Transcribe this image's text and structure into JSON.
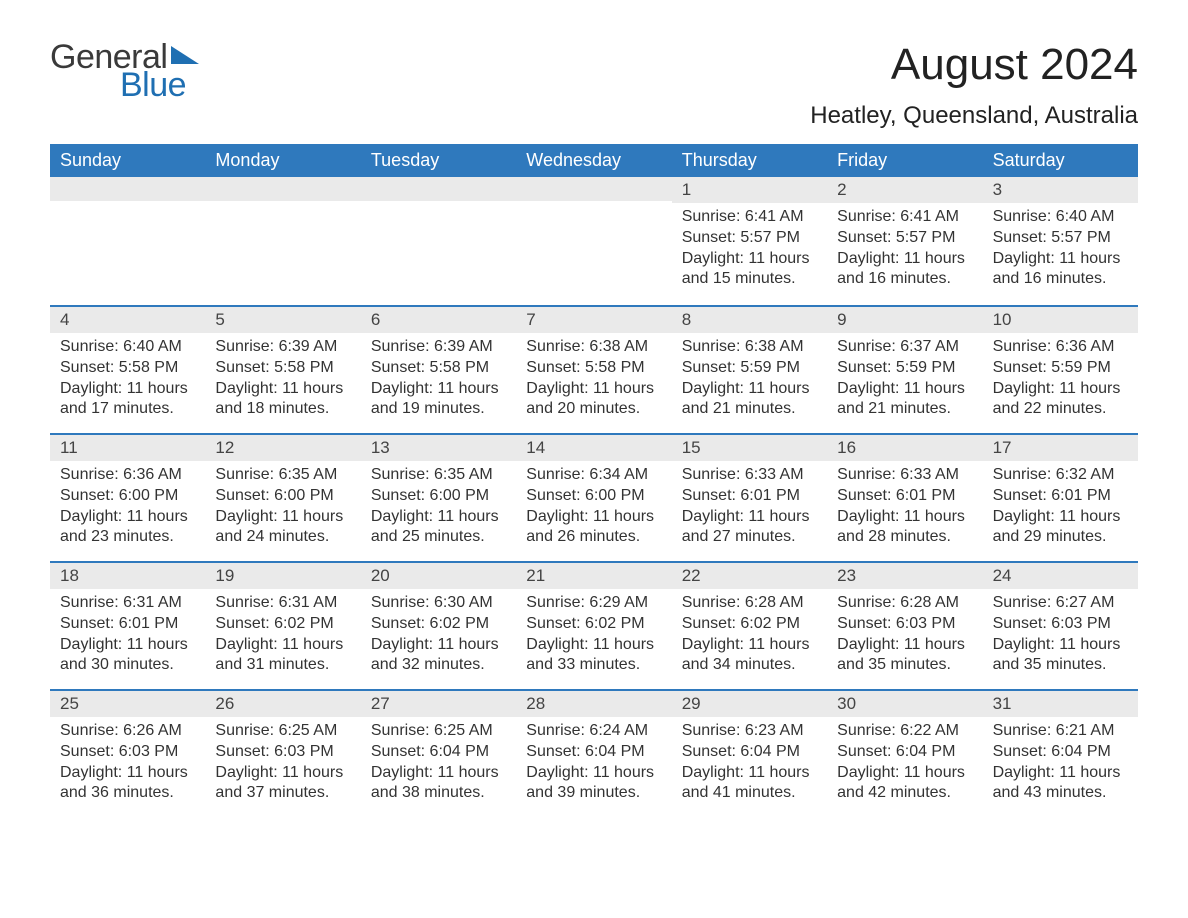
{
  "logo": {
    "general": "General",
    "blue": "Blue",
    "triangle_color": "#1f6fb2"
  },
  "title": "August 2024",
  "location": "Heatley, Queensland, Australia",
  "colors": {
    "header_bg": "#2f79bd",
    "header_text": "#ffffff",
    "week_border": "#2f79bd",
    "daynum_bg": "#eaeaea",
    "body_text": "#333333",
    "background": "#ffffff"
  },
  "fonts": {
    "title_size_pt": 33,
    "location_size_pt": 18,
    "dow_size_pt": 14,
    "body_size_pt": 12
  },
  "days_of_week": [
    "Sunday",
    "Monday",
    "Tuesday",
    "Wednesday",
    "Thursday",
    "Friday",
    "Saturday"
  ],
  "weeks": [
    [
      null,
      null,
      null,
      null,
      {
        "n": "1",
        "sr": "6:41 AM",
        "ss": "5:57 PM",
        "dl": "11 hours and 15 minutes."
      },
      {
        "n": "2",
        "sr": "6:41 AM",
        "ss": "5:57 PM",
        "dl": "11 hours and 16 minutes."
      },
      {
        "n": "3",
        "sr": "6:40 AM",
        "ss": "5:57 PM",
        "dl": "11 hours and 16 minutes."
      }
    ],
    [
      {
        "n": "4",
        "sr": "6:40 AM",
        "ss": "5:58 PM",
        "dl": "11 hours and 17 minutes."
      },
      {
        "n": "5",
        "sr": "6:39 AM",
        "ss": "5:58 PM",
        "dl": "11 hours and 18 minutes."
      },
      {
        "n": "6",
        "sr": "6:39 AM",
        "ss": "5:58 PM",
        "dl": "11 hours and 19 minutes."
      },
      {
        "n": "7",
        "sr": "6:38 AM",
        "ss": "5:58 PM",
        "dl": "11 hours and 20 minutes."
      },
      {
        "n": "8",
        "sr": "6:38 AM",
        "ss": "5:59 PM",
        "dl": "11 hours and 21 minutes."
      },
      {
        "n": "9",
        "sr": "6:37 AM",
        "ss": "5:59 PM",
        "dl": "11 hours and 21 minutes."
      },
      {
        "n": "10",
        "sr": "6:36 AM",
        "ss": "5:59 PM",
        "dl": "11 hours and 22 minutes."
      }
    ],
    [
      {
        "n": "11",
        "sr": "6:36 AM",
        "ss": "6:00 PM",
        "dl": "11 hours and 23 minutes."
      },
      {
        "n": "12",
        "sr": "6:35 AM",
        "ss": "6:00 PM",
        "dl": "11 hours and 24 minutes."
      },
      {
        "n": "13",
        "sr": "6:35 AM",
        "ss": "6:00 PM",
        "dl": "11 hours and 25 minutes."
      },
      {
        "n": "14",
        "sr": "6:34 AM",
        "ss": "6:00 PM",
        "dl": "11 hours and 26 minutes."
      },
      {
        "n": "15",
        "sr": "6:33 AM",
        "ss": "6:01 PM",
        "dl": "11 hours and 27 minutes."
      },
      {
        "n": "16",
        "sr": "6:33 AM",
        "ss": "6:01 PM",
        "dl": "11 hours and 28 minutes."
      },
      {
        "n": "17",
        "sr": "6:32 AM",
        "ss": "6:01 PM",
        "dl": "11 hours and 29 minutes."
      }
    ],
    [
      {
        "n": "18",
        "sr": "6:31 AM",
        "ss": "6:01 PM",
        "dl": "11 hours and 30 minutes."
      },
      {
        "n": "19",
        "sr": "6:31 AM",
        "ss": "6:02 PM",
        "dl": "11 hours and 31 minutes."
      },
      {
        "n": "20",
        "sr": "6:30 AM",
        "ss": "6:02 PM",
        "dl": "11 hours and 32 minutes."
      },
      {
        "n": "21",
        "sr": "6:29 AM",
        "ss": "6:02 PM",
        "dl": "11 hours and 33 minutes."
      },
      {
        "n": "22",
        "sr": "6:28 AM",
        "ss": "6:02 PM",
        "dl": "11 hours and 34 minutes."
      },
      {
        "n": "23",
        "sr": "6:28 AM",
        "ss": "6:03 PM",
        "dl": "11 hours and 35 minutes."
      },
      {
        "n": "24",
        "sr": "6:27 AM",
        "ss": "6:03 PM",
        "dl": "11 hours and 35 minutes."
      }
    ],
    [
      {
        "n": "25",
        "sr": "6:26 AM",
        "ss": "6:03 PM",
        "dl": "11 hours and 36 minutes."
      },
      {
        "n": "26",
        "sr": "6:25 AM",
        "ss": "6:03 PM",
        "dl": "11 hours and 37 minutes."
      },
      {
        "n": "27",
        "sr": "6:25 AM",
        "ss": "6:04 PM",
        "dl": "11 hours and 38 minutes."
      },
      {
        "n": "28",
        "sr": "6:24 AM",
        "ss": "6:04 PM",
        "dl": "11 hours and 39 minutes."
      },
      {
        "n": "29",
        "sr": "6:23 AM",
        "ss": "6:04 PM",
        "dl": "11 hours and 41 minutes."
      },
      {
        "n": "30",
        "sr": "6:22 AM",
        "ss": "6:04 PM",
        "dl": "11 hours and 42 minutes."
      },
      {
        "n": "31",
        "sr": "6:21 AM",
        "ss": "6:04 PM",
        "dl": "11 hours and 43 minutes."
      }
    ]
  ],
  "labels": {
    "sunrise": "Sunrise:",
    "sunset": "Sunset:",
    "daylight": "Daylight:"
  }
}
